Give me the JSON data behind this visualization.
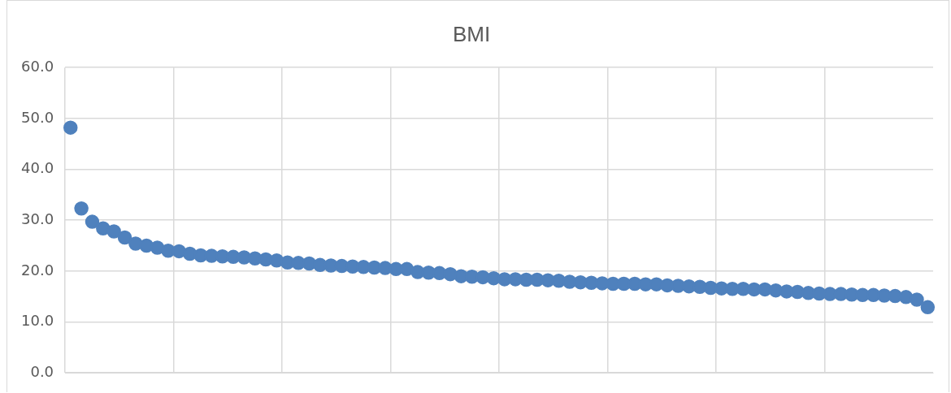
{
  "chart_data": {
    "type": "scatter",
    "title": "BMI",
    "categories": [
      null,
      null,
      null,
      null,
      null,
      null,
      null,
      null,
      null,
      null,
      null,
      null,
      null,
      null,
      null,
      null,
      null,
      null,
      null,
      null,
      null,
      null,
      null,
      null,
      null,
      null,
      null,
      null,
      null,
      null,
      null,
      null,
      null,
      null,
      null,
      null,
      null,
      null,
      null,
      null,
      null,
      null,
      null,
      null,
      null,
      null,
      null,
      null,
      null,
      null,
      null,
      null,
      null,
      null,
      null,
      null,
      null,
      null,
      null,
      null,
      null,
      null,
      null,
      null,
      null,
      null,
      null,
      null,
      null,
      null,
      null,
      null,
      null,
      null,
      null,
      null,
      null,
      null,
      null,
      null
    ],
    "series": [
      {
        "color": "#4f81bd",
        "values": [
          48.2,
          32.3,
          29.7,
          28.4,
          27.8,
          26.6,
          25.4,
          25.0,
          24.6,
          24.0,
          23.9,
          23.4,
          23.1,
          23.0,
          22.9,
          22.8,
          22.7,
          22.5,
          22.3,
          22.1,
          21.7,
          21.6,
          21.5,
          21.2,
          21.1,
          21.0,
          20.9,
          20.8,
          20.7,
          20.6,
          20.4,
          20.4,
          19.8,
          19.7,
          19.6,
          19.4,
          19.0,
          18.9,
          18.8,
          18.6,
          18.4,
          18.4,
          18.3,
          18.3,
          18.2,
          18.1,
          17.9,
          17.8,
          17.7,
          17.6,
          17.5,
          17.5,
          17.5,
          17.4,
          17.4,
          17.2,
          17.1,
          17.0,
          16.9,
          16.7,
          16.6,
          16.5,
          16.5,
          16.4,
          16.4,
          16.2,
          16.0,
          15.9,
          15.7,
          15.6,
          15.5,
          15.5,
          15.4,
          15.3,
          15.3,
          15.2,
          15.1,
          14.9,
          14.4,
          12.9
        ]
      }
    ],
    "ylim": [
      0,
      60
    ],
    "yticks": [
      {
        "value": 0,
        "label": "0.0"
      },
      {
        "value": 10,
        "label": "10.0"
      },
      {
        "value": 20,
        "label": "20.0"
      },
      {
        "value": 30,
        "label": "30.0"
      },
      {
        "value": 40,
        "label": "40.0"
      },
      {
        "value": 50,
        "label": "50.0"
      },
      {
        "value": 60,
        "label": "60.0"
      }
    ],
    "grid": true,
    "tick_labels": "y",
    "marker": "circle",
    "legend": false
  }
}
